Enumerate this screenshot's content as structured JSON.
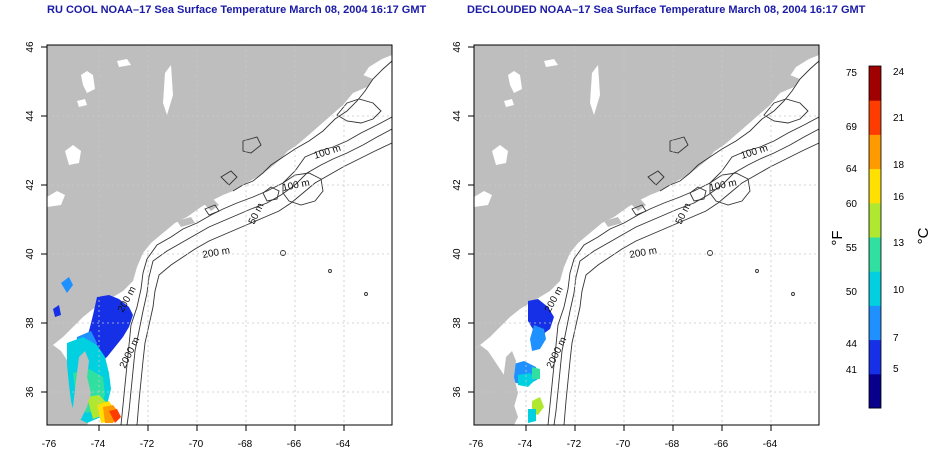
{
  "panels": {
    "left": {
      "title": "RU COOL NOAA–17 Sea Surface Temperature March 08, 2004 16:17 GMT"
    },
    "right": {
      "title": "DECLOUDED NOAA–17 Sea Surface Temperature March 08, 2004 16:17 GMT"
    }
  },
  "axes": {
    "lon_ticks": [
      "-76",
      "-74",
      "-72",
      "-70",
      "-68",
      "-66",
      "-64"
    ],
    "lat_ticks": [
      "46",
      "44",
      "42",
      "40",
      "38",
      "36"
    ]
  },
  "contour_labels": [
    "100 m",
    "100 m",
    "50 m",
    "200 m",
    "200 m",
    "2000 m"
  ],
  "colorbar": {
    "fahrenheit_label": "°F",
    "celsius_label": "°C",
    "fahrenheit_ticks": [
      "75",
      "69",
      "64",
      "60",
      "55",
      "50",
      "44",
      "41"
    ],
    "celsius_ticks": [
      "24",
      "21",
      "18",
      "16",
      "13",
      "10",
      "7",
      "5"
    ],
    "colors": [
      "#08008c",
      "#1530e6",
      "#1e90ff",
      "#00d0e0",
      "#30e0a0",
      "#b0e830",
      "#ffe000",
      "#ff9a00",
      "#ff3c00",
      "#a00000"
    ]
  },
  "colors": {
    "land": "#bebebe",
    "ocean": "#ffffff",
    "title": "#1a1aa6"
  }
}
